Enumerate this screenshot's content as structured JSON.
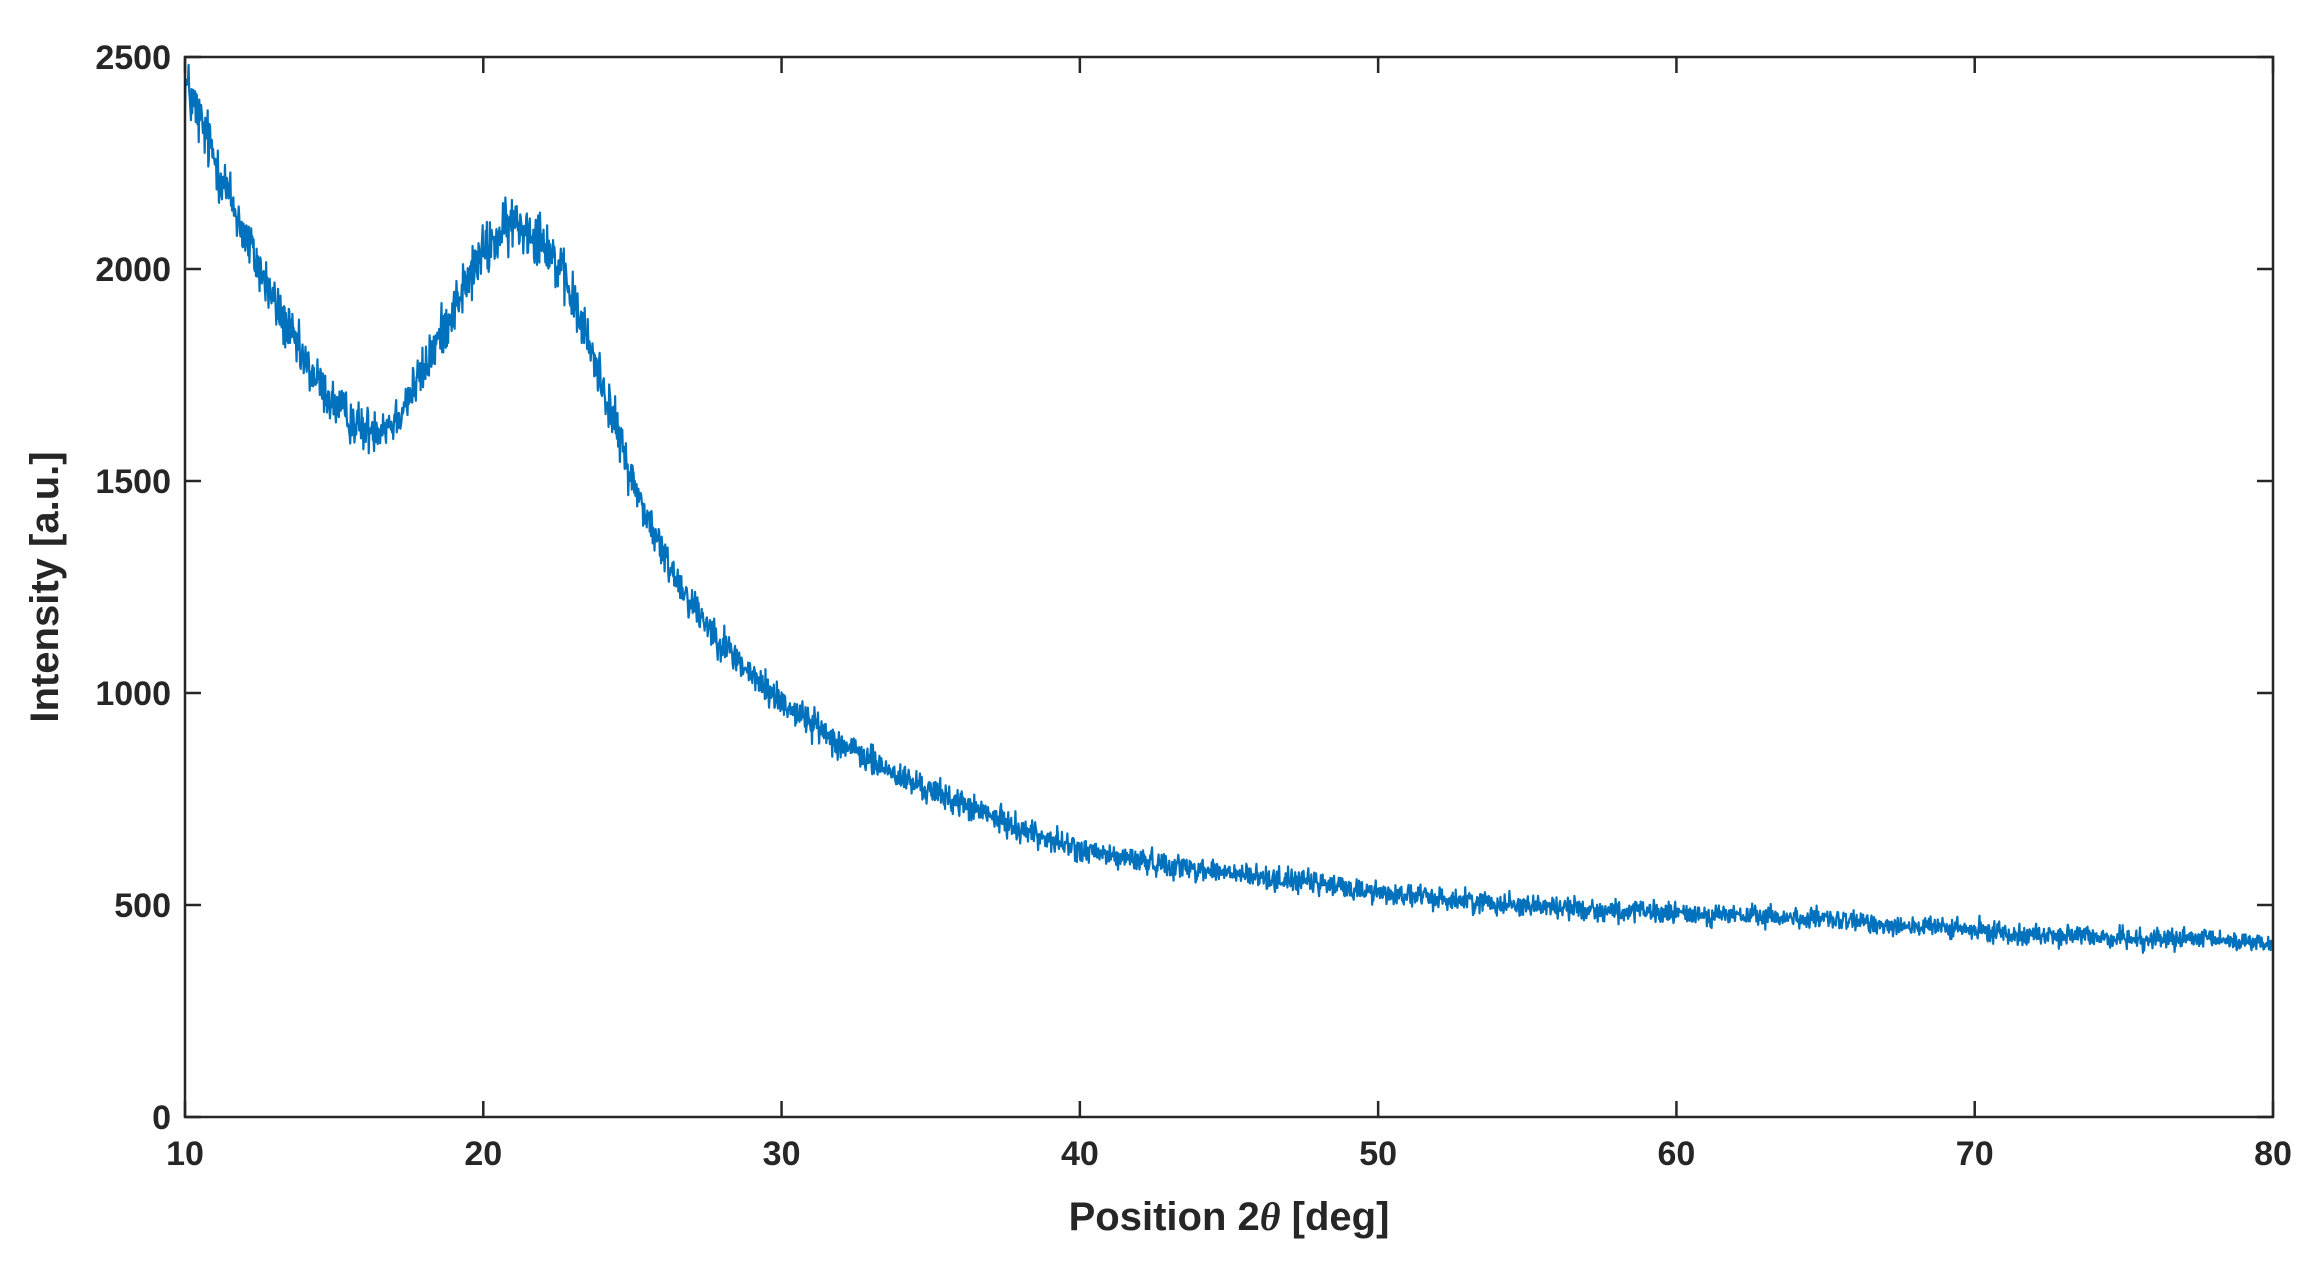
{
  "chart_data": {
    "type": "line",
    "title": "",
    "xlabel_prefix": "Position 2",
    "xlabel_symbol": "θ",
    "xlabel_suffix": " [deg]",
    "ylabel": "Intensity [a.u.]",
    "xlim": [
      10,
      80
    ],
    "ylim": [
      0,
      2500
    ],
    "xticks": [
      10,
      20,
      30,
      40,
      50,
      60,
      70,
      80
    ],
    "yticks": [
      0,
      500,
      1000,
      1500,
      2000,
      2500
    ],
    "grid": false,
    "legend": "none",
    "color": "#0072BD",
    "noise_amplitude": 45,
    "series": [
      {
        "x": [
          10,
          11,
          12,
          13,
          14,
          15,
          16,
          17,
          18,
          19,
          20,
          21,
          22,
          23,
          24,
          25,
          26,
          27,
          28,
          29,
          30,
          31,
          32,
          33,
          34,
          35,
          36,
          37,
          38,
          39,
          40,
          41,
          42,
          43,
          44,
          45,
          46,
          47,
          48,
          49,
          50,
          52,
          54,
          56,
          58,
          60,
          62,
          64,
          66,
          68,
          70,
          72,
          74,
          76,
          78,
          80
        ],
        "values": [
          2440,
          2260,
          2080,
          1920,
          1780,
          1680,
          1620,
          1640,
          1760,
          1910,
          2040,
          2110,
          2080,
          1930,
          1730,
          1500,
          1330,
          1210,
          1120,
          1040,
          980,
          930,
          880,
          840,
          800,
          770,
          740,
          710,
          680,
          655,
          630,
          615,
          605,
          595,
          585,
          575,
          565,
          560,
          550,
          540,
          530,
          515,
          505,
          495,
          485,
          480,
          475,
          470,
          460,
          450,
          440,
          430,
          425,
          420,
          418,
          410
        ]
      }
    ]
  }
}
